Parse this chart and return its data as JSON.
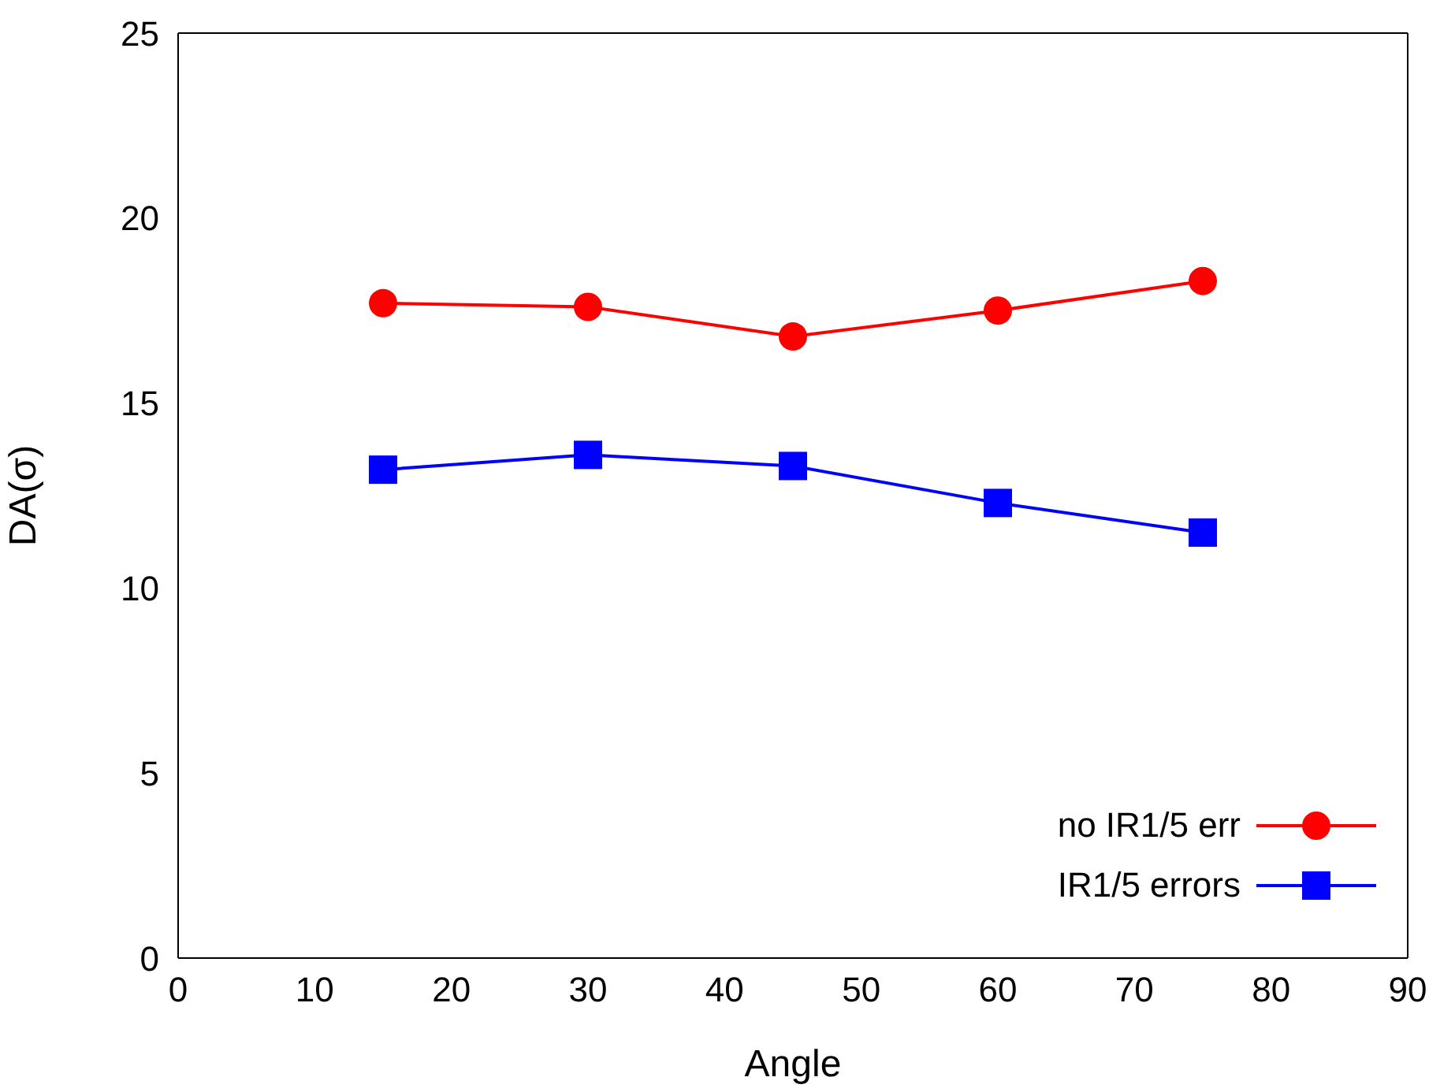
{
  "chart_data": {
    "type": "line",
    "xlabel": "Angle",
    "ylabel": "DA(σ)",
    "x": [
      15,
      30,
      45,
      60,
      75
    ],
    "series": [
      {
        "name": "no IR1/5 err",
        "color": "#ff0000",
        "marker": "circle",
        "values": [
          17.7,
          17.6,
          16.8,
          17.5,
          18.3
        ]
      },
      {
        "name": "IR1/5 errors",
        "color": "#0000ff",
        "marker": "square",
        "values": [
          13.2,
          13.6,
          13.3,
          12.3,
          11.5
        ]
      }
    ],
    "xlim": [
      0,
      90
    ],
    "xticks": [
      0,
      10,
      20,
      30,
      40,
      50,
      60,
      70,
      80,
      90
    ],
    "ylim": [
      0,
      25
    ],
    "yticks": [
      0,
      5,
      10,
      15,
      20,
      25
    ],
    "grid": false,
    "legend": "bottom right",
    "line_style": "solid"
  }
}
